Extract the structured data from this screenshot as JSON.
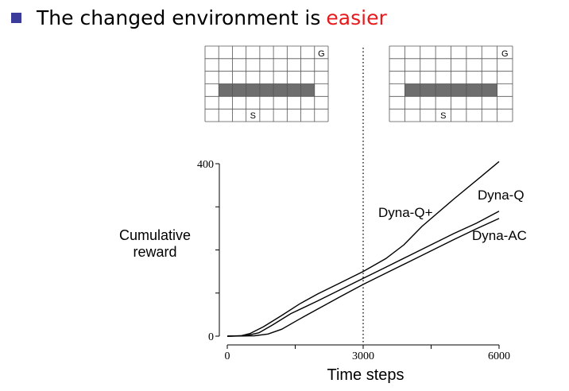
{
  "heading": {
    "text": "The changed environment is",
    "highlight": "easier",
    "highlight_color": "#e8191c",
    "bullet_color": "#3b3b9c"
  },
  "mazes": [
    {
      "goal_label": "G",
      "start_label": "S",
      "rows": 6,
      "cols": 9,
      "wall_row": 3,
      "wall_cols": [
        1,
        8
      ]
    },
    {
      "goal_label": "G",
      "start_label": "S",
      "rows": 6,
      "cols": 8,
      "wall_row": 3,
      "wall_cols": [
        1,
        7
      ]
    }
  ],
  "chart_data": {
    "type": "line",
    "title": "",
    "xlabel": "Time steps",
    "ylabel": [
      "Cumulative",
      "reward"
    ],
    "xlim": [
      0,
      6000
    ],
    "ylim": [
      0,
      400
    ],
    "x_ticks": [
      "0",
      "3000",
      "6000"
    ],
    "y_ticks": [
      "0",
      "400"
    ],
    "marker_x": 3000,
    "series": [
      {
        "name": "Dyna-Q+",
        "points": [
          [
            0,
            0
          ],
          [
            300,
            1
          ],
          [
            500,
            6
          ],
          [
            800,
            22
          ],
          [
            1200,
            48
          ],
          [
            1600,
            75
          ],
          [
            2000,
            98
          ],
          [
            2500,
            124
          ],
          [
            3000,
            150
          ],
          [
            3500,
            180
          ],
          [
            3900,
            212
          ],
          [
            4300,
            255
          ],
          [
            5000,
            318
          ],
          [
            5600,
            370
          ],
          [
            6000,
            405
          ]
        ]
      },
      {
        "name": "Dyna-Q",
        "points": [
          [
            0,
            0
          ],
          [
            400,
            1
          ],
          [
            700,
            8
          ],
          [
            1000,
            26
          ],
          [
            1400,
            52
          ],
          [
            2000,
            82
          ],
          [
            2500,
            108
          ],
          [
            3000,
            134
          ],
          [
            3500,
            160
          ],
          [
            4000,
            186
          ],
          [
            4500,
            212
          ],
          [
            5000,
            238
          ],
          [
            5500,
            262
          ],
          [
            6000,
            290
          ]
        ]
      },
      {
        "name": "Dyna-AC",
        "points": [
          [
            0,
            0
          ],
          [
            600,
            1
          ],
          [
            900,
            5
          ],
          [
            1200,
            16
          ],
          [
            1600,
            40
          ],
          [
            2000,
            63
          ],
          [
            2500,
            92
          ],
          [
            3000,
            120
          ],
          [
            3500,
            146
          ],
          [
            4000,
            172
          ],
          [
            4500,
            198
          ],
          [
            5000,
            224
          ],
          [
            5500,
            249
          ],
          [
            6000,
            273
          ]
        ]
      }
    ]
  }
}
